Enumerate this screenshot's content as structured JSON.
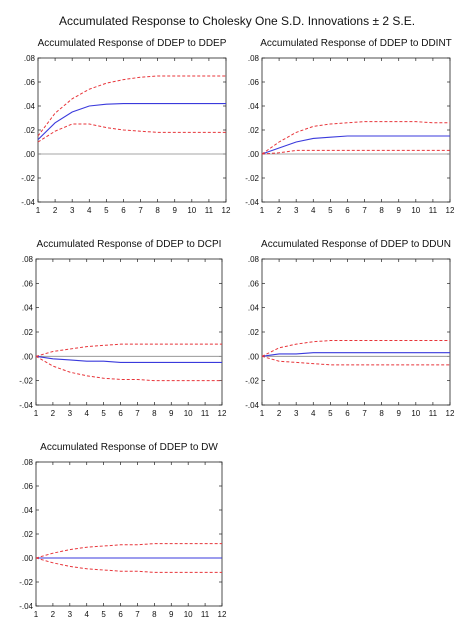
{
  "title": "Accumulated Response to Cholesky One S.D. Innovations ± 2 S.E.",
  "colors": {
    "response": "#3a3adc",
    "band": "#e8353a",
    "zero": "#888888",
    "frame": "#222222"
  },
  "chart_data": [
    {
      "type": "line",
      "title": "Accumulated Response of DDEP to DDEP",
      "x": [
        1,
        2,
        3,
        4,
        5,
        6,
        7,
        8,
        9,
        10,
        11,
        12
      ],
      "ylim": [
        -0.04,
        0.08
      ],
      "yticks": [
        ".08",
        ".06",
        ".04",
        ".02",
        ".00",
        "-.02",
        "-.04"
      ],
      "xticks": [
        "1",
        "2",
        "3",
        "4",
        "5",
        "6",
        "7",
        "8",
        "9",
        "10",
        "11",
        "12"
      ],
      "series": [
        {
          "role": "response",
          "values": [
            0.012,
            0.026,
            0.035,
            0.04,
            0.0415,
            0.042,
            0.042,
            0.042,
            0.042,
            0.042,
            0.042,
            0.042
          ]
        },
        {
          "role": "upper",
          "values": [
            0.015,
            0.034,
            0.046,
            0.054,
            0.059,
            0.062,
            0.064,
            0.065,
            0.065,
            0.065,
            0.065,
            0.065
          ]
        },
        {
          "role": "lower",
          "values": [
            0.01,
            0.019,
            0.025,
            0.025,
            0.022,
            0.02,
            0.019,
            0.018,
            0.018,
            0.018,
            0.018,
            0.018
          ]
        }
      ]
    },
    {
      "type": "line",
      "title": "Accumulated Response of DDEP to DDINT",
      "x": [
        1,
        2,
        3,
        4,
        5,
        6,
        7,
        8,
        9,
        10,
        11,
        12
      ],
      "ylim": [
        -0.04,
        0.08
      ],
      "yticks": [
        ".08",
        ".06",
        ".04",
        ".02",
        ".00",
        "-.02",
        "-.04"
      ],
      "xticks": [
        "1",
        "2",
        "3",
        "4",
        "5",
        "6",
        "7",
        "8",
        "9",
        "10",
        "11",
        "12"
      ],
      "series": [
        {
          "role": "response",
          "values": [
            0.0,
            0.005,
            0.01,
            0.013,
            0.014,
            0.015,
            0.015,
            0.015,
            0.015,
            0.015,
            0.015,
            0.015
          ]
        },
        {
          "role": "upper",
          "values": [
            0.0,
            0.01,
            0.018,
            0.023,
            0.025,
            0.026,
            0.027,
            0.027,
            0.027,
            0.027,
            0.026,
            0.026
          ]
        },
        {
          "role": "lower",
          "values": [
            0.0,
            0.001,
            0.003,
            0.003,
            0.003,
            0.003,
            0.003,
            0.003,
            0.003,
            0.003,
            0.003,
            0.003
          ]
        }
      ]
    },
    {
      "type": "line",
      "title": "Accumulated Response of DDEP to DCPI",
      "x": [
        1,
        2,
        3,
        4,
        5,
        6,
        7,
        8,
        9,
        10,
        11,
        12
      ],
      "ylim": [
        -0.04,
        0.08
      ],
      "yticks": [
        ".08",
        ".06",
        ".04",
        ".02",
        ".00",
        "-.02",
        "-.04"
      ],
      "xticks": [
        "1",
        "2",
        "3",
        "4",
        "5",
        "6",
        "7",
        "8",
        "9",
        "10",
        "11",
        "12"
      ],
      "series": [
        {
          "role": "response",
          "values": [
            0.0,
            -0.002,
            -0.003,
            -0.004,
            -0.004,
            -0.005,
            -0.005,
            -0.005,
            -0.005,
            -0.005,
            -0.005,
            -0.005
          ]
        },
        {
          "role": "upper",
          "values": [
            0.0,
            0.004,
            0.006,
            0.008,
            0.009,
            0.01,
            0.01,
            0.01,
            0.01,
            0.01,
            0.01,
            0.01
          ]
        },
        {
          "role": "lower",
          "values": [
            0.0,
            -0.008,
            -0.013,
            -0.016,
            -0.018,
            -0.019,
            -0.019,
            -0.02,
            -0.02,
            -0.02,
            -0.02,
            -0.02
          ]
        }
      ]
    },
    {
      "type": "line",
      "title": "Accumulated Response of DDEP to DDUN",
      "x": [
        1,
        2,
        3,
        4,
        5,
        6,
        7,
        8,
        9,
        10,
        11,
        12
      ],
      "ylim": [
        -0.04,
        0.08
      ],
      "yticks": [
        ".08",
        ".06",
        ".04",
        ".02",
        ".00",
        "-.02",
        "-.04"
      ],
      "xticks": [
        "1",
        "2",
        "3",
        "4",
        "5",
        "6",
        "7",
        "8",
        "9",
        "10",
        "11",
        "12"
      ],
      "series": [
        {
          "role": "response",
          "values": [
            0.0,
            0.002,
            0.002,
            0.003,
            0.003,
            0.003,
            0.003,
            0.003,
            0.003,
            0.003,
            0.003,
            0.003
          ]
        },
        {
          "role": "upper",
          "values": [
            0.0,
            0.007,
            0.01,
            0.012,
            0.013,
            0.013,
            0.013,
            0.013,
            0.013,
            0.013,
            0.013,
            0.013
          ]
        },
        {
          "role": "lower",
          "values": [
            0.0,
            -0.004,
            -0.005,
            -0.006,
            -0.007,
            -0.007,
            -0.007,
            -0.007,
            -0.007,
            -0.007,
            -0.007,
            -0.007
          ]
        }
      ]
    },
    {
      "type": "line",
      "title": "Accumulated Response of DDEP to DW",
      "x": [
        1,
        2,
        3,
        4,
        5,
        6,
        7,
        8,
        9,
        10,
        11,
        12
      ],
      "ylim": [
        -0.04,
        0.08
      ],
      "yticks": [
        ".08",
        ".06",
        ".04",
        ".02",
        ".00",
        "-.02",
        "-.04"
      ],
      "xticks": [
        "1",
        "2",
        "3",
        "4",
        "5",
        "6",
        "7",
        "8",
        "9",
        "10",
        "11",
        "12"
      ],
      "series": [
        {
          "role": "response",
          "values": [
            0.0,
            0.0,
            0.0,
            0.0,
            0.0,
            0.0,
            0.0,
            0.0,
            0.0,
            0.0,
            0.0,
            0.0
          ]
        },
        {
          "role": "upper",
          "values": [
            0.0,
            0.004,
            0.007,
            0.009,
            0.01,
            0.011,
            0.011,
            0.012,
            0.012,
            0.012,
            0.012,
            0.012
          ]
        },
        {
          "role": "lower",
          "values": [
            0.0,
            -0.004,
            -0.007,
            -0.009,
            -0.01,
            -0.011,
            -0.011,
            -0.012,
            -0.012,
            -0.012,
            -0.012,
            -0.012
          ]
        }
      ]
    }
  ]
}
